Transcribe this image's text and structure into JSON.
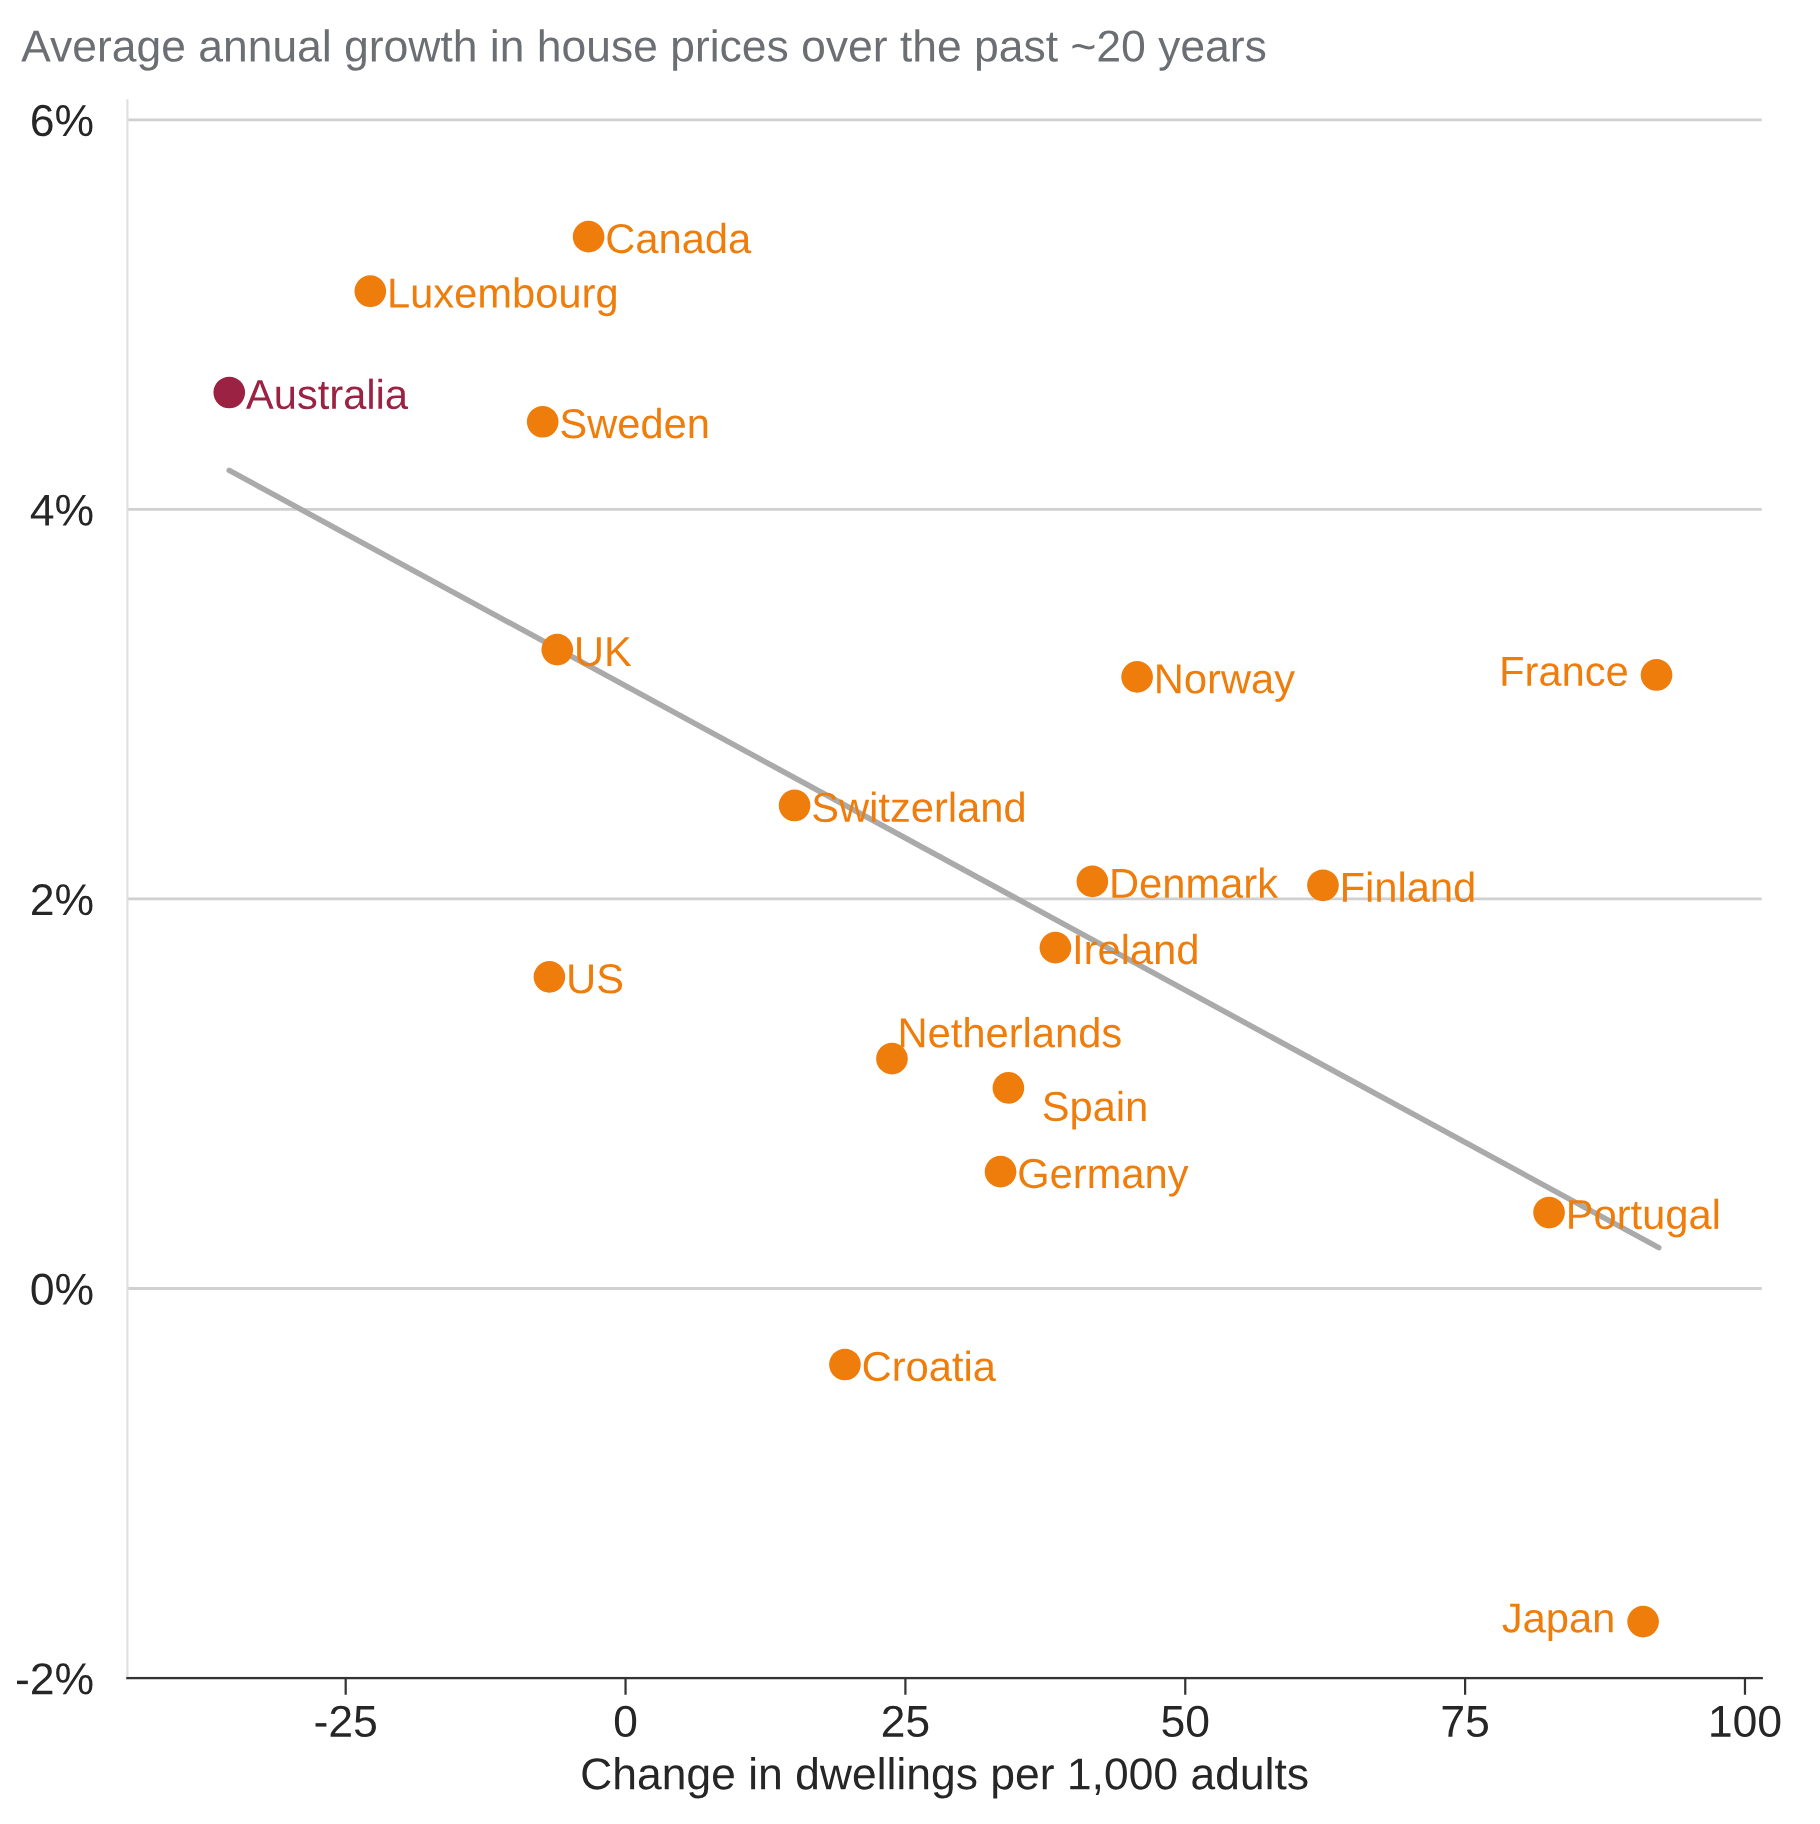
{
  "chart_data": {
    "type": "scatter",
    "title": "Average annual growth in house prices over the past ~20 years",
    "xlabel": "Change in dwellings per 1,000 adults",
    "xlim": [
      -44.5,
      101.5
    ],
    "xticks": [
      -25,
      0,
      25,
      50,
      75,
      100
    ],
    "ylim": [
      -2,
      6.1
    ],
    "yticks": [
      {
        "value": -2,
        "label": "-2%"
      },
      {
        "value": 0,
        "label": "0%"
      },
      {
        "value": 2,
        "label": "2%"
      },
      {
        "value": 4,
        "label": "4%"
      },
      {
        "value": 6,
        "label": "6%"
      }
    ],
    "grid": "y",
    "legend": false,
    "marker": "circle",
    "series": [
      {
        "name": "Canada",
        "color": "#ef7d0c",
        "x": [
          -3.3
        ],
        "values": [
          5.4
        ]
      },
      {
        "name": "Luxembourg",
        "color": "#ef7d0c",
        "x": [
          -22.8
        ],
        "values": [
          5.12
        ]
      },
      {
        "name": "Australia",
        "color": "#9b2242",
        "x": [
          -35.4
        ],
        "values": [
          4.6
        ]
      },
      {
        "name": "Sweden",
        "color": "#ef7d0c",
        "x": [
          -7.4
        ],
        "values": [
          4.45
        ]
      },
      {
        "name": "UK",
        "color": "#ef7d0c",
        "x": [
          -6.1
        ],
        "values": [
          3.28
        ]
      },
      {
        "name": "Norway",
        "color": "#ef7d0c",
        "x": [
          45.7
        ],
        "values": [
          3.14
        ]
      },
      {
        "name": "France",
        "color": "#ef7d0c",
        "x": [
          92.1
        ],
        "values": [
          3.15
        ]
      },
      {
        "name": "Switzerland",
        "color": "#ef7d0c",
        "x": [
          15.1
        ],
        "values": [
          2.48
        ]
      },
      {
        "name": "Denmark",
        "color": "#ef7d0c",
        "x": [
          41.7
        ],
        "values": [
          2.09
        ]
      },
      {
        "name": "Finland",
        "color": "#ef7d0c",
        "x": [
          62.3
        ],
        "values": [
          2.07
        ]
      },
      {
        "name": "Ireland",
        "color": "#ef7d0c",
        "x": [
          38.4
        ],
        "values": [
          1.75
        ]
      },
      {
        "name": "US",
        "color": "#ef7d0c",
        "x": [
          -6.8
        ],
        "values": [
          1.6
        ]
      },
      {
        "name": "Netherlands",
        "color": "#ef7d0c",
        "x": [
          23.8
        ],
        "values": [
          1.18
        ]
      },
      {
        "name": "Spain",
        "color": "#ef7d0c",
        "x": [
          34.2
        ],
        "values": [
          1.03
        ]
      },
      {
        "name": "Germany",
        "color": "#ef7d0c",
        "x": [
          33.5
        ],
        "values": [
          0.6
        ]
      },
      {
        "name": "Portugal",
        "color": "#ef7d0c",
        "x": [
          82.5
        ],
        "values": [
          0.39
        ]
      },
      {
        "name": "Croatia",
        "color": "#ef7d0c",
        "x": [
          19.6
        ],
        "values": [
          -0.39
        ]
      },
      {
        "name": "Japan",
        "color": "#ef7d0c",
        "x": [
          90.9
        ],
        "values": [
          -1.71
        ]
      },
      {
        "type": "line",
        "marker": "none",
        "color": "#aaaaaa",
        "x": [
          -35.4,
          92.3
        ],
        "values": [
          4.2,
          0.21
        ]
      }
    ]
  }
}
